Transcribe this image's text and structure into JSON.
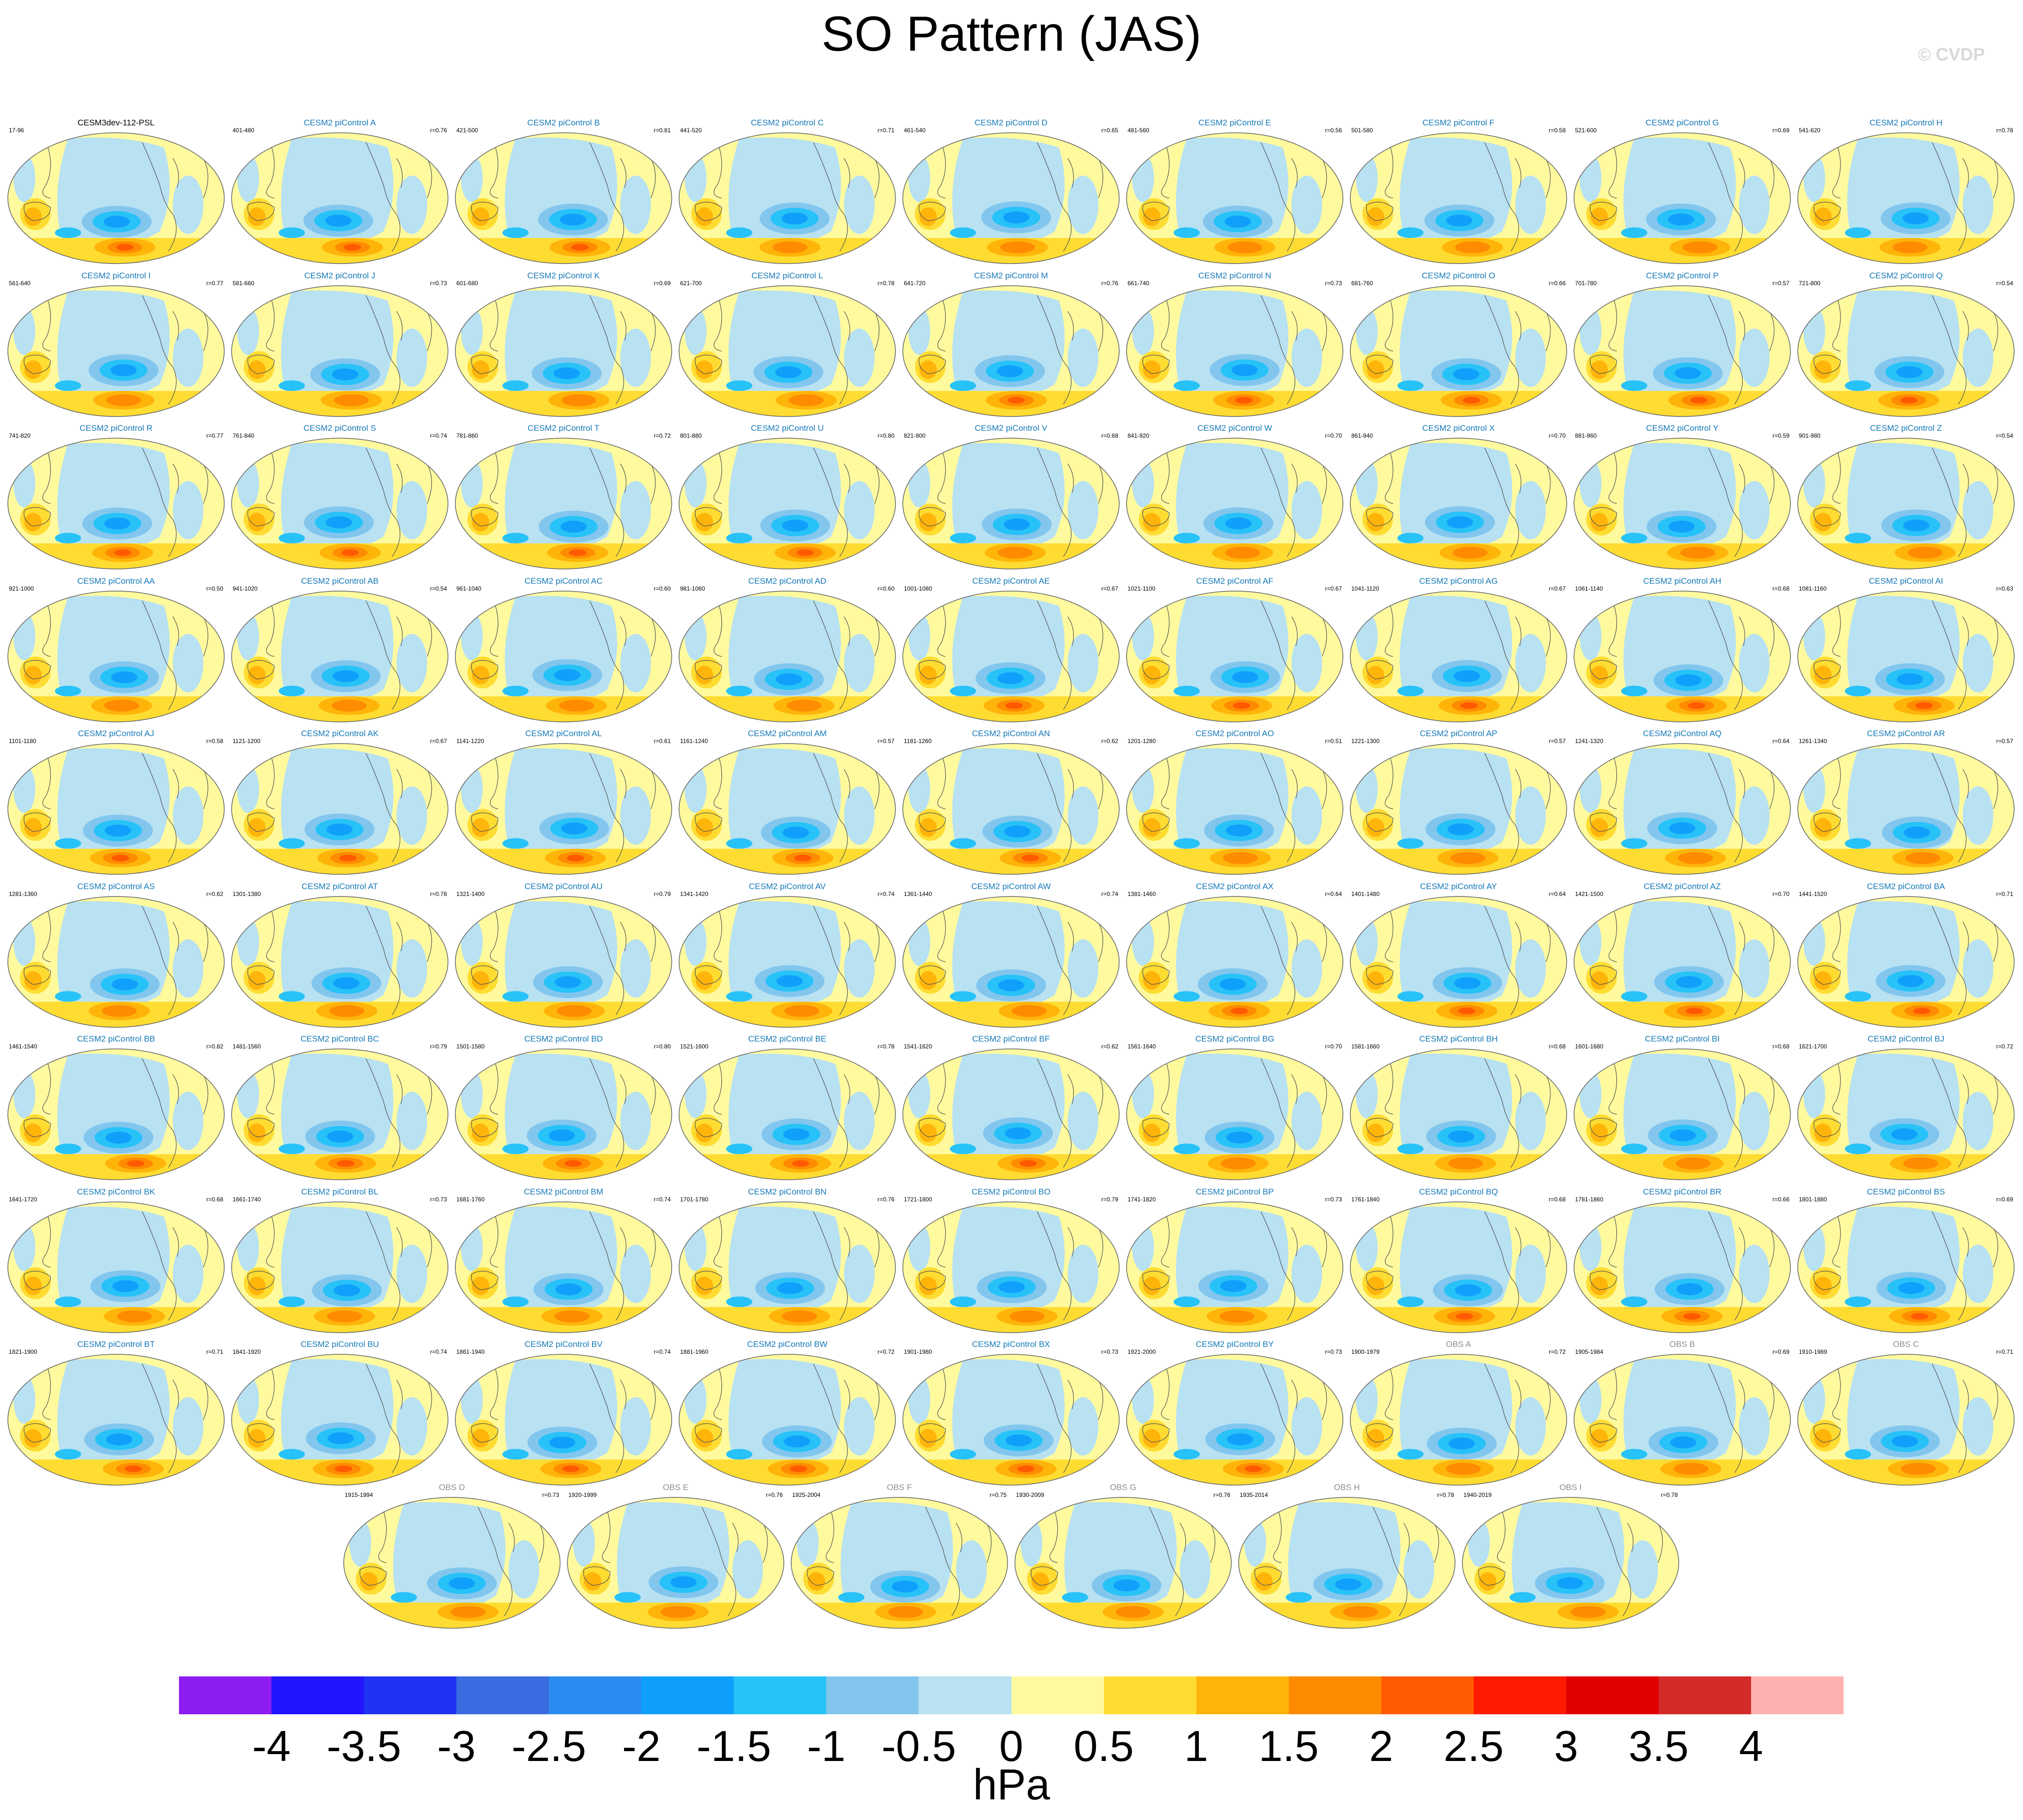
{
  "title": "SO Pattern (JAS)",
  "watermark": "© CVDP",
  "chart_data": {
    "type": "heatmap",
    "variable": "PSL",
    "units": "hPa",
    "colorbar": {
      "labels": [
        "-4",
        "-3.5",
        "-3",
        "-2.5",
        "-2",
        "-1.5",
        "-1",
        "-0.5",
        "0",
        "0.5",
        "1",
        "1.5",
        "2",
        "2.5",
        "3",
        "3.5",
        "4"
      ],
      "colors": [
        "#8d1cf2",
        "#2214ff",
        "#2033f2",
        "#3b6be0",
        "#2a8cf0",
        "#119ffc",
        "#27c2f8",
        "#82c6ee",
        "#b8e1f2",
        "#fffa9e",
        "#ffdc32",
        "#ffb40a",
        "#ff8c00",
        "#ff5a00",
        "#ff1a00",
        "#e00000",
        "#d42a2a",
        "#ffb0b0"
      ]
    },
    "panels": [
      {
        "name": "CESM3dev-112-PSL",
        "years": "17-96",
        "r": ""
      },
      {
        "name": "CESM2 piControl A",
        "years": "401-480",
        "r": "r=0.76"
      },
      {
        "name": "CESM2 piControl B",
        "years": "421-500",
        "r": "r=0.81"
      },
      {
        "name": "CESM2 piControl C",
        "years": "441-520",
        "r": "r=0.71"
      },
      {
        "name": "CESM2 piControl D",
        "years": "461-540",
        "r": "r=0.65"
      },
      {
        "name": "CESM2 piControl E",
        "years": "481-560",
        "r": "r=0.56"
      },
      {
        "name": "CESM2 piControl F",
        "years": "501-580",
        "r": "r=0.58"
      },
      {
        "name": "CESM2 piControl G",
        "years": "521-600",
        "r": "r=0.69"
      },
      {
        "name": "CESM2 piControl H",
        "years": "541-620",
        "r": "r=0.78"
      },
      {
        "name": "CESM2 piControl I",
        "years": "561-640",
        "r": "r=0.77"
      },
      {
        "name": "CESM2 piControl J",
        "years": "581-660",
        "r": "r=0.73"
      },
      {
        "name": "CESM2 piControl K",
        "years": "601-680",
        "r": "r=0.69"
      },
      {
        "name": "CESM2 piControl L",
        "years": "621-700",
        "r": "r=0.78"
      },
      {
        "name": "CESM2 piControl M",
        "years": "641-720",
        "r": "r=0.76"
      },
      {
        "name": "CESM2 piControl N",
        "years": "661-740",
        "r": "r=0.73"
      },
      {
        "name": "CESM2 piControl O",
        "years": "681-760",
        "r": "r=0.66"
      },
      {
        "name": "CESM2 piControl P",
        "years": "701-780",
        "r": "r=0.57"
      },
      {
        "name": "CESM2 piControl Q",
        "years": "721-800",
        "r": "r=0.54"
      },
      {
        "name": "CESM2 piControl R",
        "years": "741-820",
        "r": "r=0.77"
      },
      {
        "name": "CESM2 piControl S",
        "years": "761-840",
        "r": "r=0.74"
      },
      {
        "name": "CESM2 piControl T",
        "years": "781-860",
        "r": "r=0.72"
      },
      {
        "name": "CESM2 piControl U",
        "years": "801-880",
        "r": "r=0.80"
      },
      {
        "name": "CESM2 piControl V",
        "years": "821-900",
        "r": "r=0.68"
      },
      {
        "name": "CESM2 piControl W",
        "years": "841-920",
        "r": "r=0.70"
      },
      {
        "name": "CESM2 piControl X",
        "years": "861-940",
        "r": "r=0.70"
      },
      {
        "name": "CESM2 piControl Y",
        "years": "881-960",
        "r": "r=0.59"
      },
      {
        "name": "CESM2 piControl Z",
        "years": "901-980",
        "r": "r=0.54"
      },
      {
        "name": "CESM2 piControl AA",
        "years": "921-1000",
        "r": "r=0.50"
      },
      {
        "name": "CESM2 piControl AB",
        "years": "941-1020",
        "r": "r=0.54"
      },
      {
        "name": "CESM2 piControl AC",
        "years": "961-1040",
        "r": "r=0.60"
      },
      {
        "name": "CESM2 piControl AD",
        "years": "981-1060",
        "r": "r=0.60"
      },
      {
        "name": "CESM2 piControl AE",
        "years": "1001-1080",
        "r": "r=0.67"
      },
      {
        "name": "CESM2 piControl AF",
        "years": "1021-1100",
        "r": "r=0.67"
      },
      {
        "name": "CESM2 piControl AG",
        "years": "1041-1120",
        "r": "r=0.67"
      },
      {
        "name": "CESM2 piControl AH",
        "years": "1061-1140",
        "r": "r=0.68"
      },
      {
        "name": "CESM2 piControl AI",
        "years": "1081-1160",
        "r": "r=0.63"
      },
      {
        "name": "CESM2 piControl AJ",
        "years": "1101-1180",
        "r": "r=0.58"
      },
      {
        "name": "CESM2 piControl AK",
        "years": "1121-1200",
        "r": "r=0.67"
      },
      {
        "name": "CESM2 piControl AL",
        "years": "1141-1220",
        "r": "r=0.61"
      },
      {
        "name": "CESM2 piControl AM",
        "years": "1161-1240",
        "r": "r=0.57"
      },
      {
        "name": "CESM2 piControl AN",
        "years": "1181-1260",
        "r": "r=0.62"
      },
      {
        "name": "CESM2 piControl AO",
        "years": "1201-1280",
        "r": "r=0.51"
      },
      {
        "name": "CESM2 piControl AP",
        "years": "1221-1300",
        "r": "r=0.57"
      },
      {
        "name": "CESM2 piControl AQ",
        "years": "1241-1320",
        "r": "r=0.64"
      },
      {
        "name": "CESM2 piControl AR",
        "years": "1261-1340",
        "r": "r=0.57"
      },
      {
        "name": "CESM2 piControl AS",
        "years": "1281-1360",
        "r": "r=0.62"
      },
      {
        "name": "CESM2 piControl AT",
        "years": "1301-1380",
        "r": "r=0.78"
      },
      {
        "name": "CESM2 piControl AU",
        "years": "1321-1400",
        "r": "r=0.79"
      },
      {
        "name": "CESM2 piControl AV",
        "years": "1341-1420",
        "r": "r=0.74"
      },
      {
        "name": "CESM2 piControl AW",
        "years": "1361-1440",
        "r": "r=0.74"
      },
      {
        "name": "CESM2 piControl AX",
        "years": "1381-1460",
        "r": "r=0.64"
      },
      {
        "name": "CESM2 piControl AY",
        "years": "1401-1480",
        "r": "r=0.64"
      },
      {
        "name": "CESM2 piControl AZ",
        "years": "1421-1500",
        "r": "r=0.70"
      },
      {
        "name": "CESM2 piControl BA",
        "years": "1441-1520",
        "r": "r=0.71"
      },
      {
        "name": "CESM2 piControl BB",
        "years": "1461-1540",
        "r": "r=0.82"
      },
      {
        "name": "CESM2 piControl BC",
        "years": "1481-1560",
        "r": "r=0.79"
      },
      {
        "name": "CESM2 piControl BD",
        "years": "1501-1580",
        "r": "r=0.80"
      },
      {
        "name": "CESM2 piControl BE",
        "years": "1521-1600",
        "r": "r=0.78"
      },
      {
        "name": "CESM2 piControl BF",
        "years": "1541-1620",
        "r": "r=0.62"
      },
      {
        "name": "CESM2 piControl BG",
        "years": "1561-1640",
        "r": "r=0.70"
      },
      {
        "name": "CESM2 piControl BH",
        "years": "1581-1660",
        "r": "r=0.68"
      },
      {
        "name": "CESM2 piControl BI",
        "years": "1601-1680",
        "r": "r=0.68"
      },
      {
        "name": "CESM2 piControl BJ",
        "years": "1621-1700",
        "r": "r=0.72"
      },
      {
        "name": "CESM2 piControl BK",
        "years": "1641-1720",
        "r": "r=0.68"
      },
      {
        "name": "CESM2 piControl BL",
        "years": "1661-1740",
        "r": "r=0.73"
      },
      {
        "name": "CESM2 piControl BM",
        "years": "1681-1760",
        "r": "r=0.74"
      },
      {
        "name": "CESM2 piControl BN",
        "years": "1701-1780",
        "r": "r=0.76"
      },
      {
        "name": "CESM2 piControl BO",
        "years": "1721-1800",
        "r": "r=0.79"
      },
      {
        "name": "CESM2 piControl BP",
        "years": "1741-1820",
        "r": "r=0.73"
      },
      {
        "name": "CESM2 piControl BQ",
        "years": "1761-1840",
        "r": "r=0.68"
      },
      {
        "name": "CESM2 piControl BR",
        "years": "1781-1860",
        "r": "r=0.66"
      },
      {
        "name": "CESM2 piControl BS",
        "years": "1801-1880",
        "r": "r=0.69"
      },
      {
        "name": "CESM2 piControl BT",
        "years": "1821-1900",
        "r": "r=0.71"
      },
      {
        "name": "CESM2 piControl BU",
        "years": "1841-1920",
        "r": "r=0.74"
      },
      {
        "name": "CESM2 piControl BV",
        "years": "1861-1940",
        "r": "r=0.74"
      },
      {
        "name": "CESM2 piControl BW",
        "years": "1881-1960",
        "r": "r=0.72"
      },
      {
        "name": "CESM2 piControl BX",
        "years": "1901-1980",
        "r": "r=0.73"
      },
      {
        "name": "CESM2 piControl BY",
        "years": "1921-2000",
        "r": "r=0.73"
      },
      {
        "name": "OBS A",
        "years": "1900-1979",
        "r": "r=0.72"
      },
      {
        "name": "OBS B",
        "years": "1905-1984",
        "r": "r=0.69"
      },
      {
        "name": "OBS C",
        "years": "1910-1989",
        "r": "r=0.71"
      },
      {
        "name": "OBS D",
        "years": "1915-1994",
        "r": "r=0.73"
      },
      {
        "name": "OBS E",
        "years": "1920-1999",
        "r": "r=0.76"
      },
      {
        "name": "OBS F",
        "years": "1925-2004",
        "r": "r=0.75"
      },
      {
        "name": "OBS G",
        "years": "1930-2009",
        "r": "r=0.76"
      },
      {
        "name": "OBS H",
        "years": "1935-2014",
        "r": "r=0.78"
      },
      {
        "name": "OBS I",
        "years": "1940-2019",
        "r": "r=0.78"
      }
    ]
  }
}
